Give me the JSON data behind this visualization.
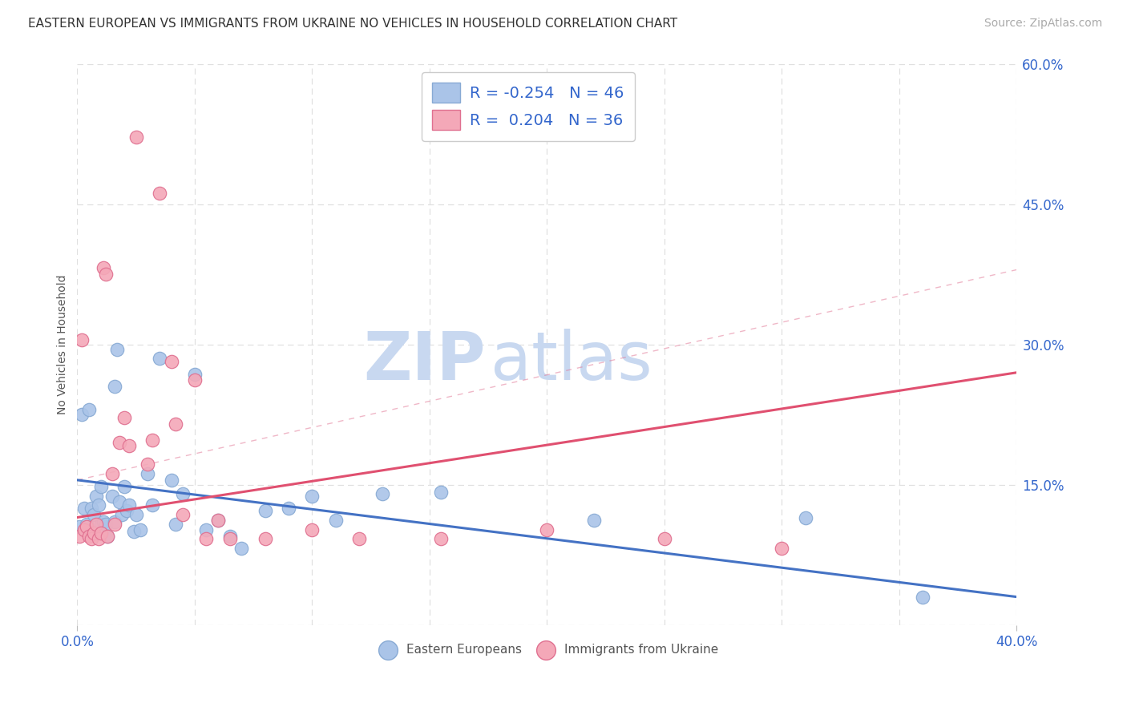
{
  "title": "EASTERN EUROPEAN VS IMMIGRANTS FROM UKRAINE NO VEHICLES IN HOUSEHOLD CORRELATION CHART",
  "source": "Source: ZipAtlas.com",
  "ylabel": "No Vehicles in Household",
  "xlim": [
    0.0,
    0.4
  ],
  "ylim": [
    0.0,
    0.6
  ],
  "yticks_right": [
    0.0,
    0.15,
    0.3,
    0.45,
    0.6
  ],
  "ytick_right_labels": [
    "",
    "15.0%",
    "30.0%",
    "45.0%",
    "60.0%"
  ],
  "grid_color": "#e0e0e0",
  "background_color": "#ffffff",
  "watermark_zip": "ZIP",
  "watermark_atlas": "atlas",
  "watermark_color": "#c8d8f0",
  "blue_series": {
    "name": "Eastern Europeans",
    "color": "#aac4e8",
    "edge_color": "#88aad4",
    "R": -0.254,
    "N": 46,
    "trend_color": "#4472c4",
    "trend_start_y": 0.155,
    "trend_end_y": 0.03,
    "x": [
      0.001,
      0.002,
      0.003,
      0.004,
      0.005,
      0.006,
      0.007,
      0.008,
      0.009,
      0.01,
      0.01,
      0.011,
      0.012,
      0.013,
      0.015,
      0.016,
      0.016,
      0.017,
      0.018,
      0.019,
      0.02,
      0.021,
      0.022,
      0.024,
      0.025,
      0.027,
      0.03,
      0.032,
      0.035,
      0.04,
      0.042,
      0.045,
      0.05,
      0.055,
      0.06,
      0.065,
      0.07,
      0.08,
      0.09,
      0.1,
      0.11,
      0.13,
      0.155,
      0.22,
      0.31,
      0.36
    ],
    "y": [
      0.105,
      0.225,
      0.125,
      0.108,
      0.23,
      0.125,
      0.118,
      0.138,
      0.128,
      0.108,
      0.148,
      0.11,
      0.108,
      0.095,
      0.138,
      0.11,
      0.255,
      0.295,
      0.132,
      0.118,
      0.148,
      0.122,
      0.128,
      0.1,
      0.118,
      0.102,
      0.162,
      0.128,
      0.285,
      0.155,
      0.108,
      0.14,
      0.268,
      0.102,
      0.112,
      0.095,
      0.082,
      0.122,
      0.125,
      0.138,
      0.112,
      0.14,
      0.142,
      0.112,
      0.115,
      0.03
    ]
  },
  "pink_series": {
    "name": "Immigrants from Ukraine",
    "color": "#f4a8b8",
    "edge_color": "#e07090",
    "R": 0.204,
    "N": 36,
    "trend_color": "#e05070",
    "trend_start_y": 0.115,
    "trend_end_y": 0.27,
    "x": [
      0.001,
      0.002,
      0.003,
      0.004,
      0.005,
      0.006,
      0.007,
      0.008,
      0.009,
      0.01,
      0.011,
      0.012,
      0.013,
      0.015,
      0.016,
      0.018,
      0.02,
      0.022,
      0.025,
      0.03,
      0.032,
      0.035,
      0.04,
      0.042,
      0.045,
      0.05,
      0.055,
      0.06,
      0.065,
      0.08,
      0.1,
      0.12,
      0.155,
      0.2,
      0.25,
      0.3
    ],
    "y": [
      0.095,
      0.305,
      0.102,
      0.105,
      0.095,
      0.092,
      0.098,
      0.108,
      0.092,
      0.098,
      0.382,
      0.375,
      0.095,
      0.162,
      0.108,
      0.195,
      0.222,
      0.192,
      0.522,
      0.172,
      0.198,
      0.462,
      0.282,
      0.215,
      0.118,
      0.262,
      0.092,
      0.112,
      0.092,
      0.092,
      0.102,
      0.092,
      0.092,
      0.102,
      0.092,
      0.082
    ]
  },
  "title_fontsize": 11,
  "axis_label_fontsize": 10,
  "tick_fontsize": 12,
  "source_fontsize": 10,
  "watermark_fontsize_zip": 60,
  "watermark_fontsize_atlas": 60,
  "legend_fontsize": 14
}
